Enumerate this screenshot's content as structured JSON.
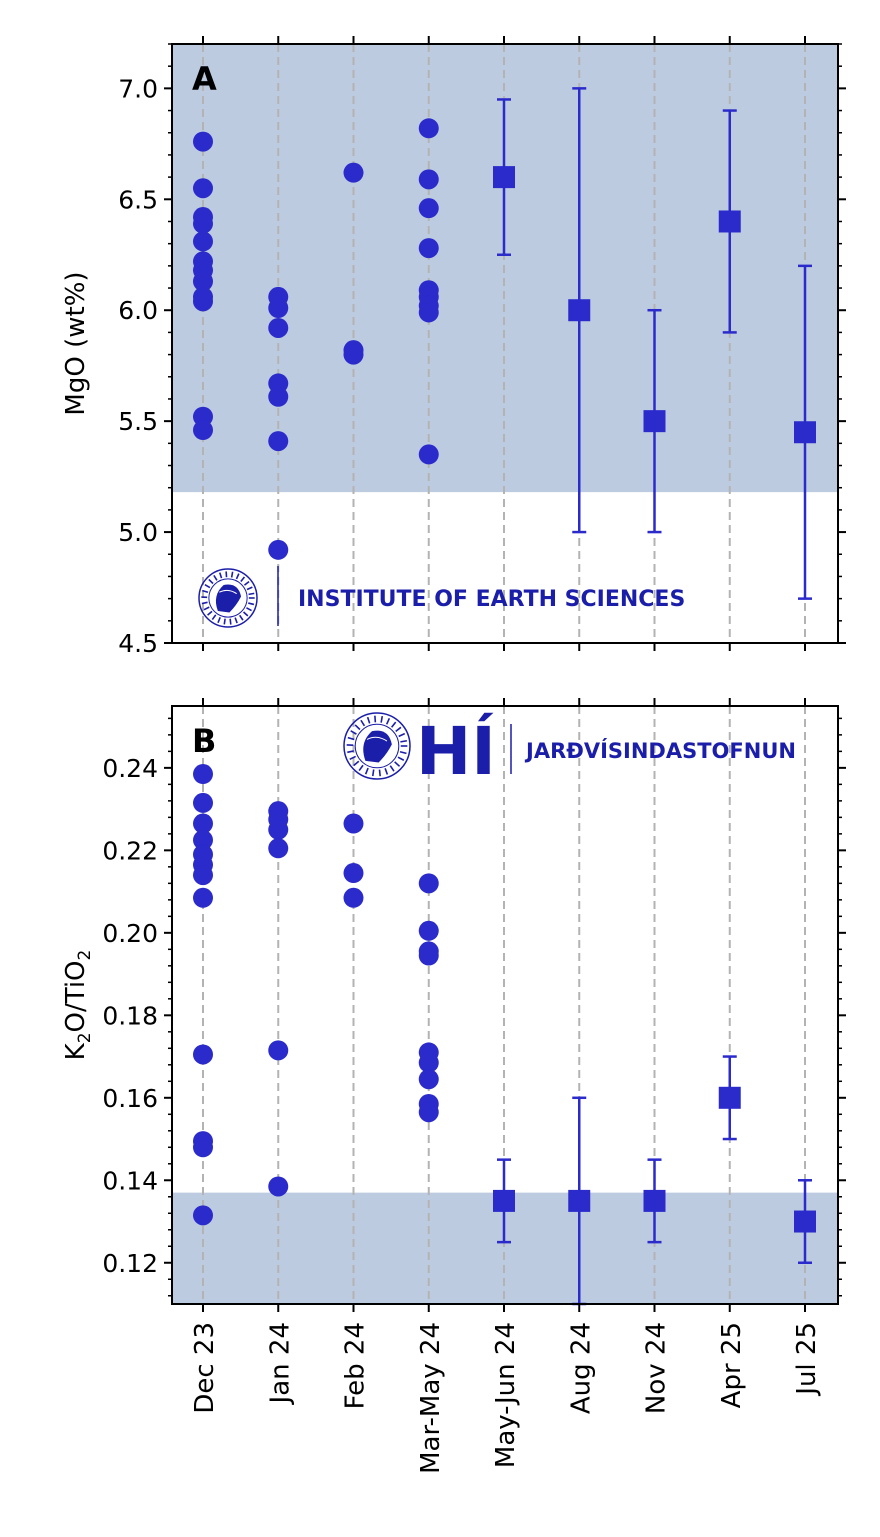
{
  "colors": {
    "marker": "#2b2bcc",
    "shade": "#bccbe0",
    "grid": "#b3b3b3",
    "logo": "#1b1ea8",
    "axis": "#000000"
  },
  "logos": {
    "institute_text": "INSTITUTE OF EARTH SCIENCES",
    "hi_mark": "HÍ",
    "jardvis_text": "JARÐVÍSINDASTOFNUN",
    "seal_text": "UNIVERSITATIS ISLANDIAE SIGILLUM"
  },
  "chart_data": [
    {
      "type": "scatter",
      "panel": "A",
      "ylabel": "MgO (wt%)",
      "xlabel": "",
      "categories": [
        "Dec 23",
        "Jan 24",
        "Feb 24",
        "Mar-May 24",
        "May-Jun 24",
        "Aug 24",
        "Nov 24",
        "Apr 25",
        "Jul 25"
      ],
      "ylim": [
        4.5,
        7.2
      ],
      "yticks": [
        4.5,
        5.0,
        5.5,
        6.0,
        6.5,
        7.0
      ],
      "ytick_labels": [
        "4.5",
        "5.0",
        "5.5",
        "6.0",
        "6.5",
        "7.0"
      ],
      "shaded_band": [
        5.18,
        7.2
      ],
      "grid": "vertical dashed",
      "samples": [
        {
          "category": "Dec 23",
          "values": [
            6.76,
            6.55,
            6.42,
            6.39,
            6.31,
            6.22,
            6.18,
            6.13,
            6.06,
            6.04,
            5.52,
            5.46
          ]
        },
        {
          "category": "Jan 24",
          "values": [
            6.06,
            6.01,
            5.92,
            5.67,
            5.61,
            5.41,
            4.92
          ]
        },
        {
          "category": "Feb 24",
          "values": [
            6.62,
            5.82,
            5.8
          ]
        },
        {
          "category": "Mar-May 24",
          "values": [
            6.82,
            6.59,
            6.46,
            6.28,
            6.09,
            6.06,
            6.02,
            5.99,
            5.35
          ]
        }
      ],
      "estimates": [
        {
          "category": "May-Jun 24",
          "value": 6.6,
          "low": 6.25,
          "high": 6.95
        },
        {
          "category": "Aug 24",
          "value": 6.0,
          "low": 5.0,
          "high": 7.0
        },
        {
          "category": "Nov 24",
          "value": 5.5,
          "low": 5.0,
          "high": 6.0
        },
        {
          "category": "Apr 25",
          "value": 6.4,
          "low": 5.9,
          "high": 6.9
        },
        {
          "category": "Jul 25",
          "value": 5.45,
          "low": 4.7,
          "high": 6.2
        }
      ]
    },
    {
      "type": "scatter",
      "panel": "B",
      "ylabel": "K2O/TiO2",
      "xlabel": "",
      "categories": [
        "Dec 23",
        "Jan 24",
        "Feb 24",
        "Mar-May 24",
        "May-Jun 24",
        "Aug 24",
        "Nov 24",
        "Apr 25",
        "Jul 25"
      ],
      "ylim": [
        0.11,
        0.255
      ],
      "yticks": [
        0.12,
        0.14,
        0.16,
        0.18,
        0.2,
        0.22,
        0.24
      ],
      "ytick_labels": [
        "0.12",
        "0.14",
        "0.16",
        "0.18",
        "0.20",
        "0.22",
        "0.24"
      ],
      "shaded_band": [
        0.11,
        0.137
      ],
      "grid": "vertical dashed",
      "samples": [
        {
          "category": "Dec 23",
          "values": [
            0.2385,
            0.2315,
            0.2265,
            0.2225,
            0.219,
            0.2165,
            0.214,
            0.2085,
            0.1705,
            0.1495,
            0.148,
            0.1315
          ]
        },
        {
          "category": "Jan 24",
          "values": [
            0.2295,
            0.2275,
            0.225,
            0.2205,
            0.1715,
            0.1385
          ]
        },
        {
          "category": "Feb 24",
          "values": [
            0.2265,
            0.2145,
            0.2085
          ]
        },
        {
          "category": "Mar-May 24",
          "values": [
            0.212,
            0.2005,
            0.1955,
            0.1945,
            0.171,
            0.1685,
            0.1645,
            0.1585,
            0.1565
          ]
        }
      ],
      "estimates": [
        {
          "category": "May-Jun 24",
          "value": 0.135,
          "low": 0.125,
          "high": 0.145
        },
        {
          "category": "Aug 24",
          "value": 0.135,
          "low": 0.11,
          "high": 0.16
        },
        {
          "category": "Nov 24",
          "value": 0.135,
          "low": 0.125,
          "high": 0.145
        },
        {
          "category": "Apr 25",
          "value": 0.16,
          "low": 0.15,
          "high": 0.17
        },
        {
          "category": "Jul 25",
          "value": 0.13,
          "low": 0.12,
          "high": 0.14
        }
      ]
    }
  ]
}
